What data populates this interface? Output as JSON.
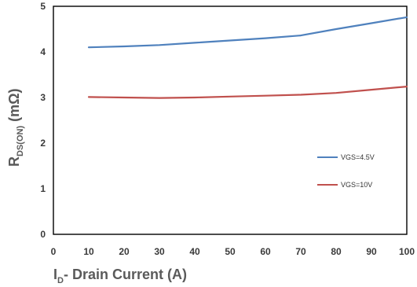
{
  "chart_data": {
    "type": "line",
    "x": [
      10,
      20,
      30,
      40,
      50,
      60,
      70,
      80,
      90,
      100
    ],
    "series": [
      {
        "name": "VGS=4.5V",
        "color": "#4f81bd",
        "values": [
          4.1,
          4.12,
          4.15,
          4.2,
          4.25,
          4.3,
          4.36,
          4.5,
          4.63,
          4.76
        ]
      },
      {
        "name": "VGS=10V",
        "color": "#c0504d",
        "values": [
          3.01,
          3.0,
          2.99,
          3.0,
          3.02,
          3.04,
          3.06,
          3.1,
          3.17,
          3.24
        ]
      }
    ],
    "xlim": [
      0,
      100
    ],
    "ylim": [
      0,
      5
    ],
    "xticks": [
      "0",
      "10",
      "20",
      "30",
      "40",
      "50",
      "60",
      "70",
      "80",
      "90",
      "100"
    ],
    "yticks": [
      "0",
      "1",
      "2",
      "3",
      "4",
      "5"
    ],
    "xlabel": {
      "main": "I",
      "sub": "D",
      "rest": "- Drain Current (A)"
    },
    "ylabel": {
      "main": "R",
      "sub": "DS(ON)",
      "rest": " (mΩ)"
    },
    "grid": false,
    "legend_position": "right"
  }
}
